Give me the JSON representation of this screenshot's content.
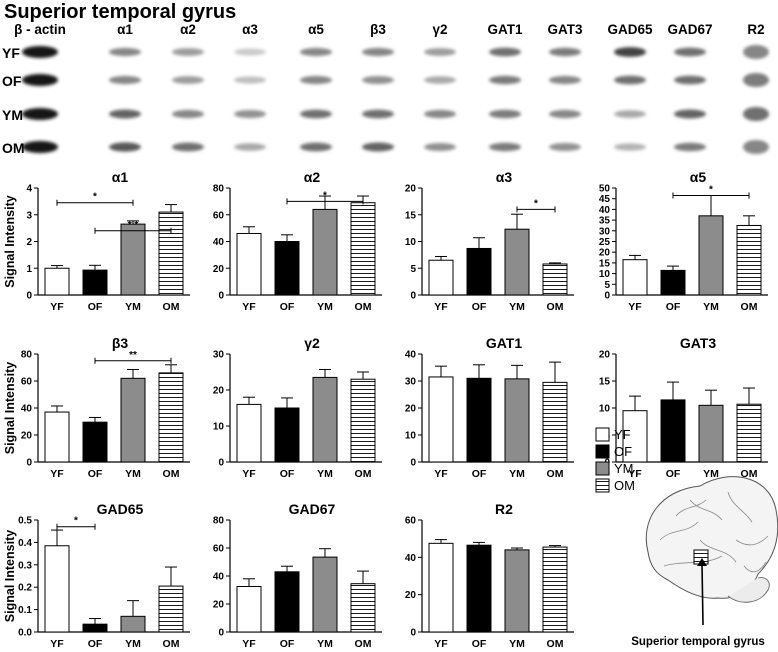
{
  "figure": {
    "title": "Superior temporal gyrus",
    "ylabel": "Signal Intensity",
    "brain_caption": "Superior temporal gyrus"
  },
  "blots": {
    "columns": [
      "β - actin",
      "α1",
      "α2",
      "α3",
      "α5",
      "β3",
      "γ2",
      "GAT1",
      "GAT3",
      "GAD65",
      "GAD67",
      "R2"
    ],
    "rows": [
      "YF",
      "OF",
      "YM",
      "OM"
    ],
    "intensity": [
      [
        0.95,
        0.45,
        0.35,
        0.15,
        0.45,
        0.45,
        0.35,
        0.55,
        0.5,
        0.75,
        0.55,
        0.45
      ],
      [
        0.95,
        0.45,
        0.35,
        0.2,
        0.45,
        0.4,
        0.3,
        0.5,
        0.45,
        0.55,
        0.55,
        0.5
      ],
      [
        0.95,
        0.6,
        0.45,
        0.4,
        0.55,
        0.55,
        0.45,
        0.5,
        0.45,
        0.3,
        0.6,
        0.55
      ],
      [
        0.95,
        0.65,
        0.55,
        0.3,
        0.55,
        0.6,
        0.4,
        0.5,
        0.4,
        0.25,
        0.5,
        0.45
      ]
    ]
  },
  "legend": {
    "items": [
      {
        "label": "YF",
        "fill": "#ffffff",
        "pattern": "none"
      },
      {
        "label": "OF",
        "fill": "#000000",
        "pattern": "none"
      },
      {
        "label": "YM",
        "fill": "#8c8c8c",
        "pattern": "none"
      },
      {
        "label": "OM",
        "fill": "#ffffff",
        "pattern": "hlines"
      }
    ]
  },
  "chart_data": [
    {
      "type": "bar",
      "title": "α1",
      "categories": [
        "YF",
        "OF",
        "YM",
        "OM"
      ],
      "values": [
        1.0,
        0.93,
        2.65,
        3.1
      ],
      "errors": [
        0.1,
        0.18,
        0.12,
        0.28
      ],
      "ylim": [
        0,
        4
      ],
      "yticks": [
        "0",
        "1",
        "2",
        "3",
        "4"
      ],
      "ylabel": "Signal Intensity",
      "sig": [
        {
          "from": 0,
          "to": 2,
          "y": 3.45,
          "label": "*"
        },
        {
          "from": 1,
          "to": 3,
          "y": 2.4,
          "label": "* *"
        }
      ]
    },
    {
      "type": "bar",
      "title": "α2",
      "categories": [
        "YF",
        "OF",
        "YM",
        "OM"
      ],
      "values": [
        46,
        40,
        64,
        69
      ],
      "errors": [
        5,
        5,
        10,
        5
      ],
      "ylim": [
        0,
        80
      ],
      "yticks": [
        "0",
        "20",
        "40",
        "60",
        "80"
      ],
      "ylabel": "",
      "sig": [
        {
          "from": 1,
          "to": 3,
          "y": 70,
          "label": "*"
        }
      ]
    },
    {
      "type": "bar",
      "title": "α3",
      "categories": [
        "YF",
        "OF",
        "YM",
        "OM"
      ],
      "values": [
        6.5,
        8.7,
        12.3,
        5.8
      ],
      "errors": [
        0.7,
        2.0,
        2.8,
        0.2
      ],
      "ylim": [
        0,
        20
      ],
      "yticks": [
        "0",
        "5",
        "10",
        "15",
        "20"
      ],
      "ylabel": "",
      "sig": [
        {
          "from": 2,
          "to": 3,
          "y": 16,
          "label": "*"
        }
      ]
    },
    {
      "type": "bar",
      "title": "α5",
      "categories": [
        "YF",
        "OF",
        "YM",
        "OM"
      ],
      "values": [
        16.5,
        11.5,
        37,
        32.5
      ],
      "errors": [
        2,
        2,
        9.5,
        4.5
      ],
      "ylim": [
        0,
        50
      ],
      "yticks": [
        "0",
        "5",
        "10",
        "15",
        "20",
        "25",
        "30",
        "35",
        "40",
        "45",
        "50"
      ],
      "ylabel": "",
      "sig": [
        {
          "from": 1,
          "to": 3,
          "y": 46.5,
          "label": "*"
        }
      ]
    },
    {
      "type": "bar",
      "title": "β3",
      "categories": [
        "YF",
        "OF",
        "YM",
        "OM"
      ],
      "values": [
        37,
        29.5,
        62,
        66
      ],
      "errors": [
        4.5,
        3.5,
        6.5,
        6
      ],
      "ylim": [
        0,
        80
      ],
      "yticks": [
        "0",
        "20",
        "40",
        "60",
        "80"
      ],
      "ylabel": "Signal Intensity",
      "sig": [
        {
          "from": 1,
          "to": 3,
          "y": 75,
          "label": "**"
        }
      ]
    },
    {
      "type": "bar",
      "title": "γ2",
      "categories": [
        "YF",
        "OF",
        "YM",
        "OM"
      ],
      "values": [
        16,
        15,
        23.5,
        23
      ],
      "errors": [
        2,
        2.8,
        2.2,
        2
      ],
      "ylim": [
        0,
        30
      ],
      "yticks": [
        "0",
        "10",
        "20",
        "30"
      ],
      "ylabel": "",
      "sig": []
    },
    {
      "type": "bar",
      "title": "GAT1",
      "categories": [
        "YF",
        "OF",
        "YM",
        "OM"
      ],
      "values": [
        31.5,
        31,
        30.8,
        29.5
      ],
      "errors": [
        4,
        5,
        5,
        7.5
      ],
      "ylim": [
        0,
        40
      ],
      "yticks": [
        "0",
        "10",
        "20",
        "30",
        "40"
      ],
      "ylabel": "",
      "sig": []
    },
    {
      "type": "bar",
      "title": "GAT3",
      "categories": [
        "YF",
        "OF",
        "YM",
        "OM"
      ],
      "values": [
        9.5,
        11.5,
        10.5,
        10.7
      ],
      "errors": [
        2.7,
        3.3,
        2.8,
        3
      ],
      "ylim": [
        0,
        20
      ],
      "yticks": [
        "0",
        "5",
        "10",
        "15",
        "20"
      ],
      "ylabel": "",
      "sig": []
    },
    {
      "type": "bar",
      "title": "GAD65",
      "categories": [
        "YF",
        "OF",
        "YM",
        "OM"
      ],
      "values": [
        0.385,
        0.035,
        0.07,
        0.205
      ],
      "errors": [
        0.07,
        0.025,
        0.07,
        0.085
      ],
      "ylim": [
        0,
        0.5
      ],
      "yticks": [
        "0.0",
        "0.1",
        "0.2",
        "0.3",
        "0.4",
        "0.5"
      ],
      "ylabel": "Signal Intensity",
      "sig": [
        {
          "from": 0,
          "to": 1,
          "y": 0.47,
          "label": "*"
        }
      ]
    },
    {
      "type": "bar",
      "title": "GAD67",
      "categories": [
        "YF",
        "OF",
        "YM",
        "OM"
      ],
      "values": [
        32.5,
        43,
        53.5,
        34.5
      ],
      "errors": [
        5.5,
        4,
        6,
        9
      ],
      "ylim": [
        0,
        80
      ],
      "yticks": [
        "0",
        "20",
        "40",
        "60",
        "80"
      ],
      "ylabel": "",
      "sig": []
    },
    {
      "type": "bar",
      "title": "R2",
      "categories": [
        "YF",
        "OF",
        "YM",
        "OM"
      ],
      "values": [
        47.5,
        46.5,
        44,
        45.5
      ],
      "errors": [
        2,
        1.5,
        1,
        0.8
      ],
      "ylim": [
        0,
        60
      ],
      "yticks": [
        "0",
        "20",
        "40",
        "60"
      ],
      "ylabel": "",
      "sig": []
    }
  ]
}
